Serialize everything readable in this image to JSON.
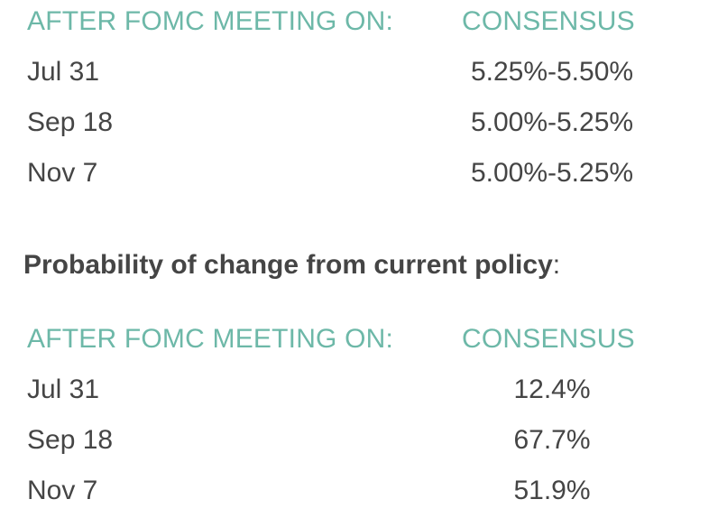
{
  "table1": {
    "header_left": "AFTER FOMC MEETING ON:",
    "header_right": "CONSENSUS",
    "rows": [
      {
        "date": "Jul 31",
        "value": "5.25%-5.50%"
      },
      {
        "date": "Sep 18",
        "value": "5.00%-5.25%"
      },
      {
        "date": "Nov 7",
        "value": "5.00%-5.25%"
      }
    ]
  },
  "probability_heading": {
    "bold_text": "Probability of change from current policy",
    "suffix": ":"
  },
  "table2": {
    "header_left": "AFTER FOMC MEETING ON:",
    "header_right": "CONSENSUS",
    "rows": [
      {
        "date": "Jul 31",
        "value": "12.4%"
      },
      {
        "date": "Sep 18",
        "value": "67.7%"
      },
      {
        "date": "Nov 7",
        "value": "51.9%"
      }
    ]
  },
  "colors": {
    "header_teal": "#6db8a8",
    "body_text": "#454545"
  }
}
